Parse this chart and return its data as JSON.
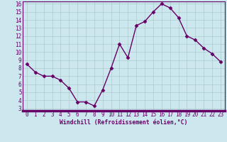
{
  "x": [
    0,
    1,
    2,
    3,
    4,
    5,
    6,
    7,
    8,
    9,
    10,
    11,
    12,
    13,
    14,
    15,
    16,
    17,
    18,
    19,
    20,
    21,
    22,
    23
  ],
  "y": [
    8.5,
    7.5,
    7.0,
    7.0,
    6.5,
    5.5,
    3.8,
    3.8,
    3.3,
    5.3,
    8.0,
    11.0,
    9.3,
    13.3,
    13.8,
    15.0,
    16.0,
    15.5,
    14.3,
    12.0,
    11.5,
    10.5,
    9.8,
    8.8
  ],
  "line_color": "#660066",
  "marker": "D",
  "markersize": 2.5,
  "linewidth": 1.0,
  "bg_color": "#cce8ee",
  "grid_color": "#aacccc",
  "xlabel": "Windchill (Refroidissement éolien,°C)",
  "xlabel_color": "#660066",
  "tick_color": "#660066",
  "ylim_min": 3,
  "ylim_max": 16,
  "xlim_min": -0.5,
  "xlim_max": 23.5,
  "yticks": [
    3,
    4,
    5,
    6,
    7,
    8,
    9,
    10,
    11,
    12,
    13,
    14,
    15,
    16
  ],
  "xticks": [
    0,
    1,
    2,
    3,
    4,
    5,
    6,
    7,
    8,
    9,
    10,
    11,
    12,
    13,
    14,
    15,
    16,
    17,
    18,
    19,
    20,
    21,
    22,
    23
  ],
  "xlabel_fontsize": 5.8,
  "tick_fontsize": 5.5,
  "spine_color": "#660066",
  "bottom_color": "#660066"
}
